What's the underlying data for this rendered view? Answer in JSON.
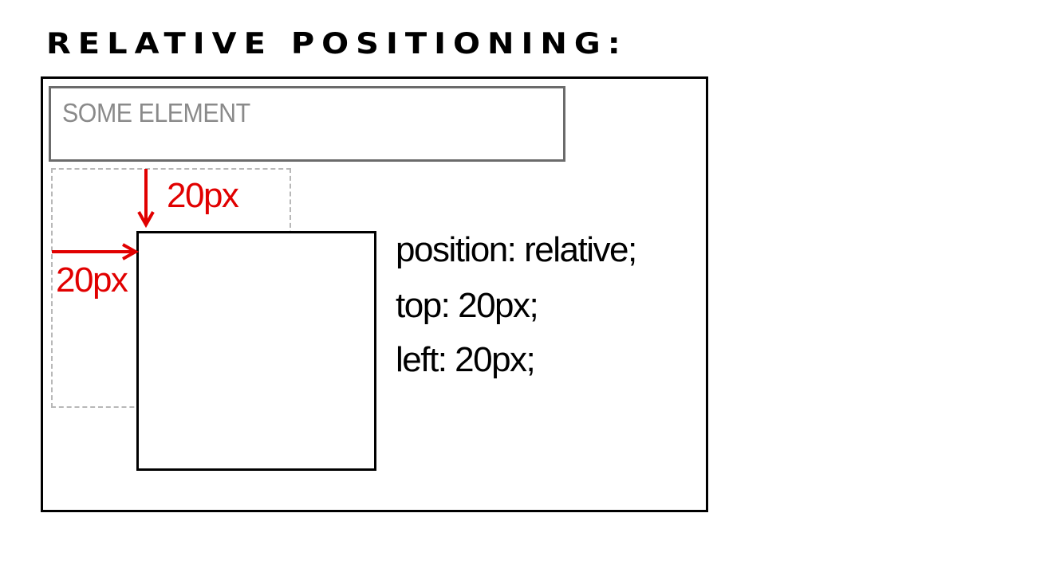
{
  "title": "RELATIVE POSITIONING:",
  "diagram": {
    "some_element_label": "SOME ELEMENT",
    "top_offset_label": "20px",
    "left_offset_label": "20px",
    "code_lines": [
      "position: relative;",
      "top: 20px;",
      "left: 20px;"
    ]
  },
  "colors": {
    "accent": "#e10000",
    "border": "#000000",
    "element_border": "#6b6b6b",
    "label_text": "#8a8a8a",
    "dashed_outline": "#b8b8b8"
  },
  "icons": {
    "top_arrow": "arrow-down-icon",
    "left_arrow": "arrow-right-icon"
  }
}
